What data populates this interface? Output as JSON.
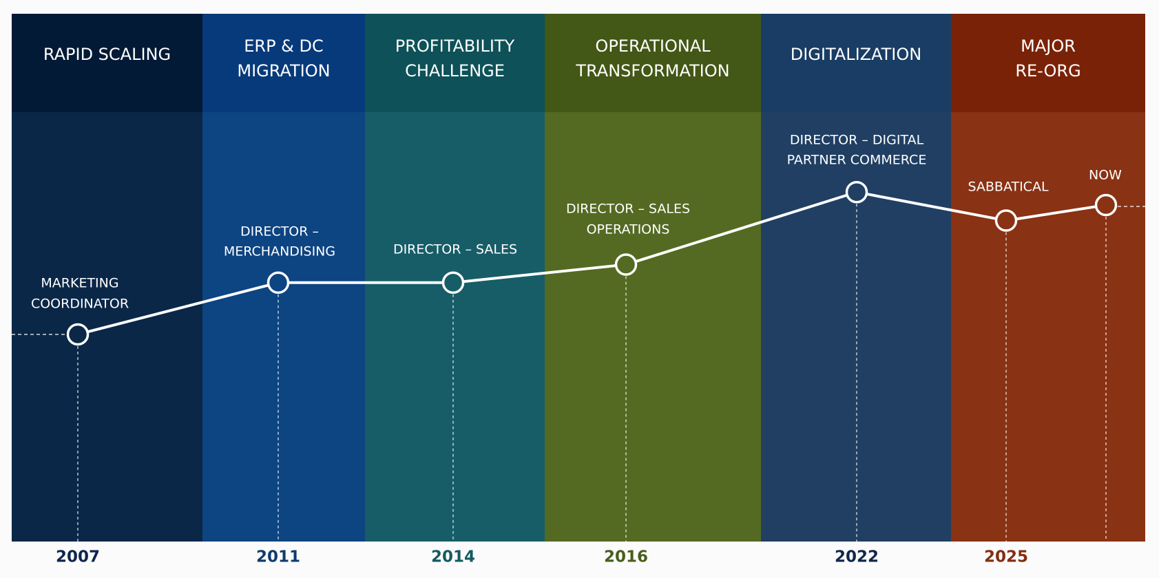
{
  "eras": [
    {
      "title_lines": [
        "RAPID SCALING"
      ],
      "header_color": "#031a36",
      "body_color": "#0a2748"
    },
    {
      "title_lines": [
        "ERP & DC",
        "MIGRATION"
      ],
      "header_color": "#073a7a",
      "body_color": "#0d4482"
    },
    {
      "title_lines": [
        "PROFITABILITY",
        "CHALLENGE"
      ],
      "header_color": "#0e5158",
      "body_color": "#175d68"
    },
    {
      "title_lines": [
        "OPERATIONAL",
        "TRANSFORMATION"
      ],
      "header_color": "#435716",
      "body_color": "#546a22"
    },
    {
      "title_lines": [
        "DIGITALIZATION"
      ],
      "header_color": "#193d64",
      "body_color": "#203f63"
    },
    {
      "title_lines": [
        "MAJOR",
        "RE-ORG"
      ],
      "header_color": "#7a2207",
      "body_color": "#8a3214"
    }
  ],
  "milestones": [
    {
      "label_lines": [
        "MARKETING",
        "COORDINATOR"
      ],
      "year": "2007",
      "year_color": "#0d2650",
      "level": 1.0
    },
    {
      "label_lines": [
        "DIRECTOR –",
        "MERCHANDISING"
      ],
      "year": "2011",
      "year_color": "#0f3a70",
      "level": 3.0
    },
    {
      "label_lines": [
        "DIRECTOR – SALES"
      ],
      "year": "2014",
      "year_color": "#145a60",
      "level": 3.0
    },
    {
      "label_lines": [
        "DIRECTOR – SALES",
        "OPERATIONS"
      ],
      "year": "2016",
      "year_color": "#495e1c",
      "level": 3.7
    },
    {
      "label_lines": [
        "DIRECTOR – DIGITAL",
        "PARTNER COMMERCE"
      ],
      "year": "2022",
      "year_color": "#10264c",
      "level": 6.5
    },
    {
      "label_lines": [
        "SABBATICAL"
      ],
      "year": "2025",
      "year_color": "#862d10",
      "level": 5.4
    },
    {
      "label_lines": [
        "NOW"
      ],
      "year": "",
      "year_color": "#862d10",
      "level": 6.0
    }
  ],
  "colors": {
    "line": "#ffffff",
    "marker_fill": "transparent",
    "background": "#fbfbfb"
  }
}
